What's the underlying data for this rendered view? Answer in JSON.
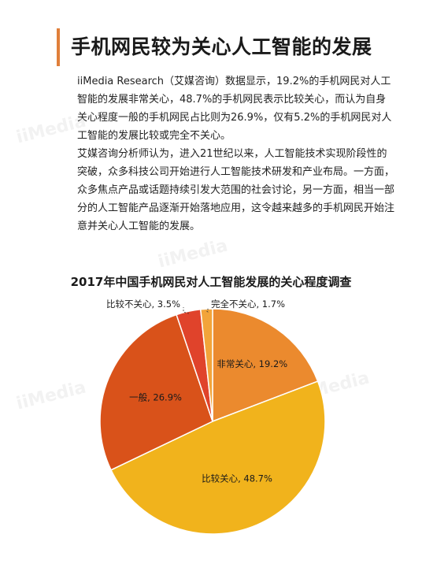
{
  "header": {
    "title": "手机网民较为关心人工智能的发展"
  },
  "body": {
    "paragraph1": "iiMedia Research（艾媒咨询）数据显示，19.2%的手机网民对人工智能的发展非常关心，48.7%的手机网民表示比较关心，而认为自身关心程度一般的手机网民占比则为26.9%，仅有5.2%的手机网民对人工智能的发展比较或完全不关心。",
    "paragraph2": "艾媒咨询分析师认为，进入21世纪以来，人工智能技术实现阶段性的突破，众多科技公司开始进行人工智能技术研发和产业布局。一方面，众多焦点产品或话题持续引发大范围的社会讨论，另一方面，相当一部分的人工智能产品逐渐开始落地应用，这令越来越多的手机网民开始注意并关心人工智能的发展。"
  },
  "watermark": "iiMedia",
  "chart_data": {
    "type": "pie",
    "title": "2017年中国手机网民对人工智能发展的关心程度调查",
    "slices": [
      {
        "label": "非常关心",
        "value": 19.2,
        "display": "非常关心, 19.2%",
        "color": "#eb8a2e"
      },
      {
        "label": "比较关心",
        "value": 48.7,
        "display": "比较关心, 48.7%",
        "color": "#f1b31c"
      },
      {
        "label": "一般",
        "value": 26.9,
        "display": "一般, 26.9%",
        "color": "#d9521a"
      },
      {
        "label": "比较不关心",
        "value": 3.5,
        "display": "比较不关心, 3.5%",
        "color": "#e0432b"
      },
      {
        "label": "完全不关心",
        "value": 1.7,
        "display": "完全不关心, 1.7%",
        "color": "#f2a43a"
      }
    ]
  }
}
